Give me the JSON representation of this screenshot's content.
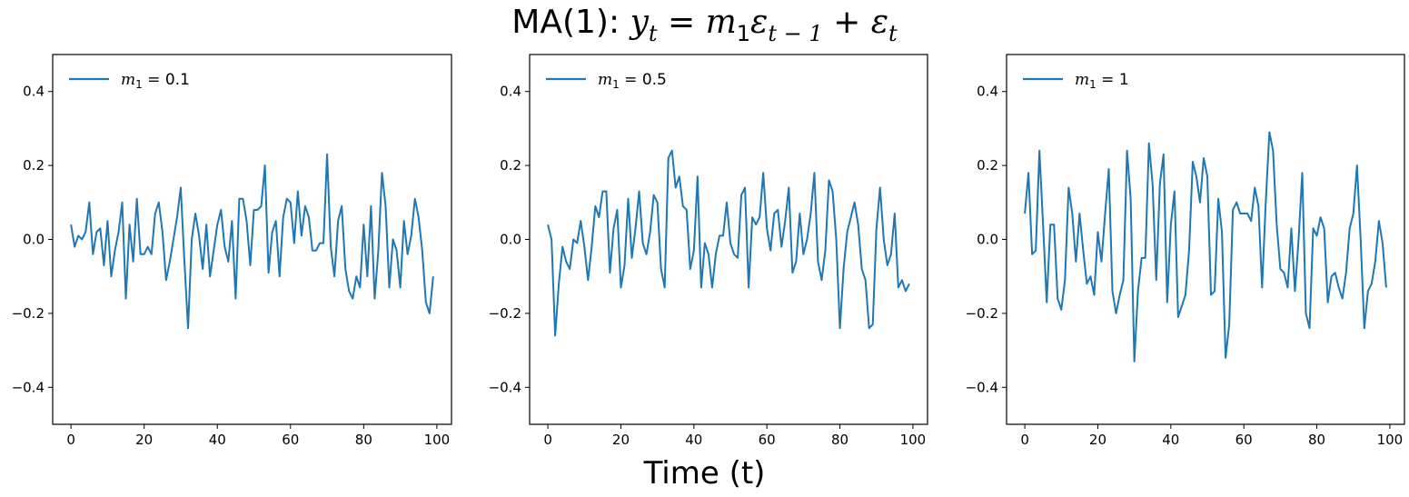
{
  "title": {
    "prefix": "MA(1): ",
    "equation": {
      "y": "y",
      "y_sub": "t",
      "eq": " = ",
      "m": "m",
      "m_sub": "1",
      "eps1": "ε",
      "eps1_sub": "t − 1",
      "plus": " + ",
      "eps2": "ε",
      "eps2_sub": "t"
    }
  },
  "xlabel": "Time (t)",
  "colors": {
    "line": "#1f77b4",
    "axis": "#000000"
  },
  "chart_data": [
    {
      "type": "line",
      "legend": {
        "position": "top-left",
        "label_var": "m",
        "label_sub": "1",
        "label_value": " = 0.1"
      },
      "xlim": [
        -5,
        104
      ],
      "ylim": [
        -0.5,
        0.5
      ],
      "xticks": [
        0,
        20,
        40,
        60,
        80,
        100
      ],
      "yticks": [
        -0.4,
        -0.2,
        0.0,
        0.2,
        0.4
      ],
      "grid": false,
      "series": [
        {
          "y": [
            0.04,
            -0.02,
            0.01,
            0.0,
            0.02,
            0.1,
            -0.04,
            0.02,
            0.03,
            -0.07,
            0.05,
            -0.1,
            -0.03,
            0.02,
            0.1,
            -0.16,
            0.04,
            -0.06,
            0.11,
            -0.04,
            -0.04,
            -0.02,
            -0.04,
            0.07,
            0.1,
            0.02,
            -0.11,
            -0.06,
            0.0,
            0.06,
            0.14,
            -0.06,
            -0.24,
            0.0,
            0.07,
            0.01,
            -0.08,
            0.04,
            -0.1,
            -0.03,
            0.04,
            0.08,
            -0.02,
            -0.06,
            0.05,
            -0.16,
            0.11,
            0.11,
            0.05,
            -0.07,
            0.08,
            0.08,
            0.09,
            0.2,
            -0.09,
            0.02,
            0.05,
            -0.1,
            0.06,
            0.11,
            0.1,
            -0.01,
            0.13,
            0.01,
            0.09,
            0.06,
            -0.03,
            -0.03,
            -0.01,
            -0.01,
            0.23,
            -0.02,
            -0.1,
            0.05,
            0.09,
            -0.08,
            -0.14,
            -0.16,
            -0.1,
            -0.13,
            0.04,
            -0.1,
            0.09,
            -0.16,
            -0.03,
            0.18,
            0.09,
            -0.13,
            0.0,
            -0.03,
            -0.13,
            0.05,
            -0.04,
            0.01,
            0.11,
            0.06,
            -0.03,
            -0.17,
            -0.2,
            -0.1
          ]
        }
      ]
    },
    {
      "type": "line",
      "legend": {
        "position": "top-left",
        "label_var": "m",
        "label_sub": "1",
        "label_value": " = 0.5"
      },
      "xlim": [
        -5,
        104
      ],
      "ylim": [
        -0.5,
        0.5
      ],
      "xticks": [
        0,
        20,
        40,
        60,
        80,
        100
      ],
      "yticks": [
        -0.4,
        -0.2,
        0.0,
        0.2,
        0.4
      ],
      "grid": false,
      "series": [
        {
          "y": [
            0.04,
            0.0,
            -0.26,
            -0.12,
            -0.02,
            -0.06,
            -0.08,
            0.0,
            -0.01,
            0.05,
            -0.02,
            -0.11,
            -0.02,
            0.09,
            0.06,
            0.13,
            0.13,
            -0.09,
            0.03,
            0.08,
            -0.13,
            -0.07,
            0.11,
            -0.05,
            0.03,
            0.13,
            -0.01,
            -0.04,
            0.02,
            0.12,
            0.1,
            -0.08,
            -0.13,
            0.22,
            0.24,
            0.14,
            0.17,
            0.09,
            0.08,
            -0.08,
            -0.03,
            0.17,
            -0.13,
            -0.01,
            -0.04,
            -0.13,
            -0.04,
            0.01,
            0.01,
            0.1,
            -0.01,
            -0.04,
            -0.05,
            0.12,
            0.14,
            -0.13,
            0.06,
            0.04,
            0.06,
            0.18,
            0.03,
            -0.03,
            0.07,
            0.08,
            -0.02,
            0.05,
            0.14,
            -0.09,
            -0.06,
            0.07,
            -0.04,
            0.0,
            0.07,
            0.18,
            -0.06,
            -0.11,
            -0.03,
            0.16,
            0.13,
            0.0,
            -0.24,
            -0.08,
            0.02,
            0.06,
            0.1,
            0.04,
            -0.08,
            -0.11,
            -0.24,
            -0.23,
            0.03,
            0.14,
            0.0,
            -0.07,
            -0.04,
            0.07,
            -0.13,
            -0.11,
            -0.14,
            -0.12
          ]
        }
      ]
    },
    {
      "type": "line",
      "legend": {
        "position": "top-left",
        "label_var": "m",
        "label_sub": "1",
        "label_value": " = 1"
      },
      "xlim": [
        -5,
        104
      ],
      "ylim": [
        -0.5,
        0.5
      ],
      "xticks": [
        0,
        20,
        40,
        60,
        80,
        100
      ],
      "yticks": [
        -0.4,
        -0.2,
        0.0,
        0.2,
        0.4
      ],
      "grid": false,
      "series": [
        {
          "y": [
            0.07,
            0.18,
            -0.04,
            -0.03,
            0.24,
            0.04,
            -0.17,
            0.04,
            0.04,
            -0.16,
            -0.19,
            -0.11,
            0.14,
            0.07,
            -0.06,
            0.07,
            -0.03,
            -0.12,
            -0.1,
            -0.15,
            0.02,
            -0.06,
            0.07,
            0.19,
            -0.14,
            -0.2,
            -0.15,
            -0.11,
            0.24,
            0.11,
            -0.33,
            -0.14,
            -0.05,
            -0.05,
            0.26,
            0.15,
            -0.11,
            0.15,
            0.23,
            -0.17,
            0.04,
            0.13,
            -0.21,
            -0.18,
            -0.15,
            -0.03,
            0.21,
            0.17,
            0.1,
            0.22,
            0.17,
            -0.15,
            -0.14,
            0.11,
            0.02,
            -0.32,
            -0.23,
            0.08,
            0.1,
            0.07,
            0.07,
            0.07,
            0.05,
            0.14,
            0.09,
            -0.13,
            0.1,
            0.29,
            0.24,
            0.04,
            -0.08,
            -0.09,
            -0.13,
            0.03,
            -0.14,
            0.0,
            0.18,
            -0.2,
            -0.24,
            0.03,
            0.01,
            0.06,
            0.03,
            -0.17,
            -0.1,
            -0.09,
            -0.13,
            -0.16,
            -0.09,
            0.03,
            0.07,
            0.2,
            0.0,
            -0.24,
            -0.14,
            -0.12,
            -0.06,
            0.05,
            -0.01,
            -0.13
          ]
        }
      ]
    }
  ]
}
